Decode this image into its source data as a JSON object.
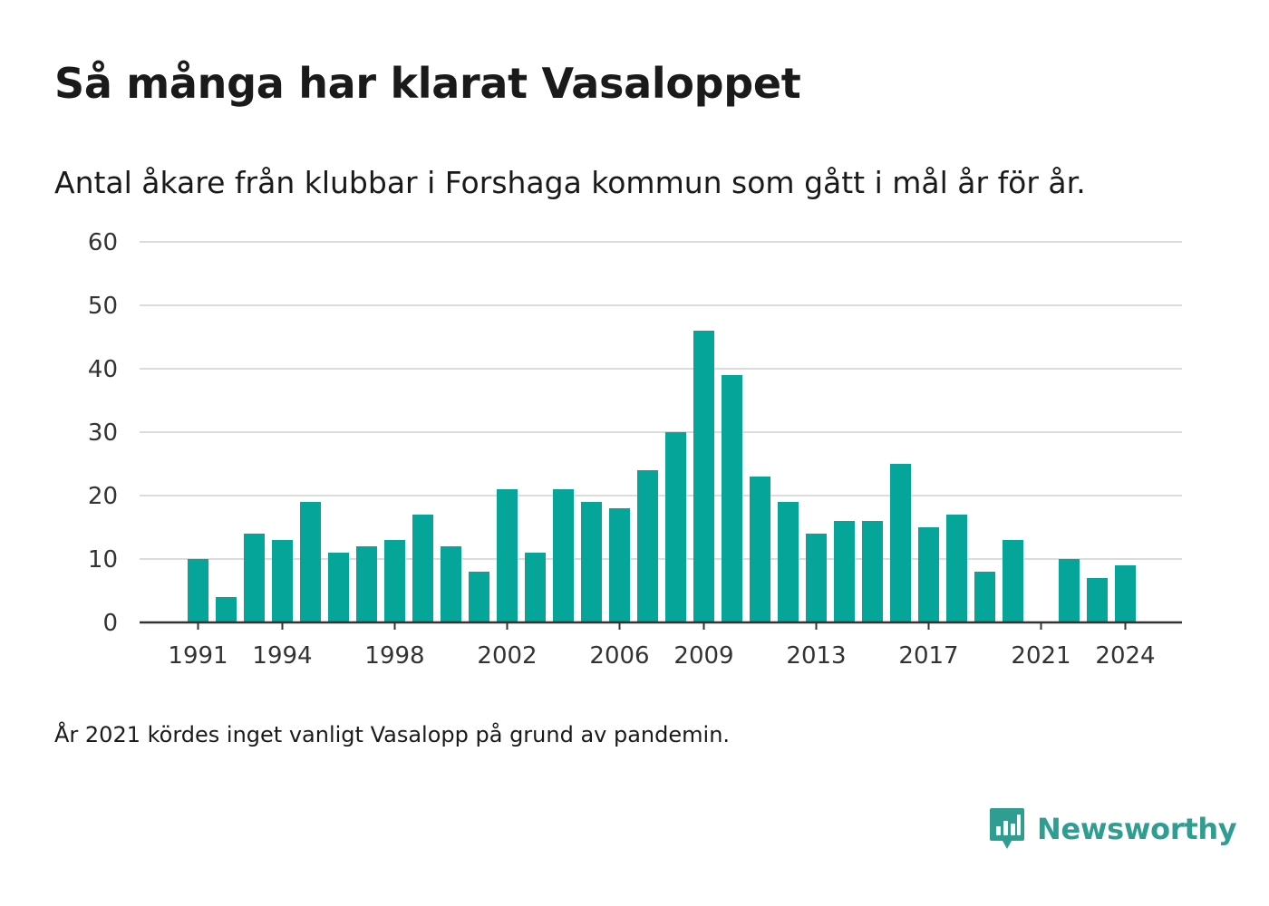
{
  "title": "Så många har klarat Vasaloppet",
  "subtitle": "Antal åkare från klubbar i Forshaga kommun som gått i mål år för år.",
  "note": "År 2021 kördes inget vanligt Vasalopp på grund av pandemin.",
  "brand": {
    "name": "Newsworthy",
    "icon": "newsworthy-logo-icon",
    "color": "#2f9e91"
  },
  "chart_data": {
    "type": "bar",
    "x": [
      1991,
      1992,
      1993,
      1994,
      1995,
      1996,
      1997,
      1998,
      1999,
      2000,
      2001,
      2002,
      2003,
      2004,
      2005,
      2006,
      2007,
      2008,
      2009,
      2010,
      2011,
      2012,
      2013,
      2014,
      2015,
      2016,
      2017,
      2018,
      2019,
      2020,
      2021,
      2022,
      2023,
      2024
    ],
    "values": [
      10,
      4,
      14,
      13,
      19,
      11,
      12,
      13,
      17,
      12,
      8,
      21,
      11,
      21,
      19,
      18,
      24,
      30,
      46,
      39,
      23,
      19,
      14,
      16,
      16,
      25,
      15,
      17,
      8,
      13,
      null,
      10,
      7,
      9
    ],
    "x_tick_labels": [
      "1991",
      "1994",
      "1998",
      "2002",
      "2006",
      "2009",
      "2013",
      "2017",
      "2021",
      "2024"
    ],
    "y_ticks": [
      0,
      10,
      20,
      30,
      40,
      50,
      60
    ],
    "ylim": [
      0,
      60
    ],
    "grid": true,
    "bar_color": "#06a59a"
  }
}
